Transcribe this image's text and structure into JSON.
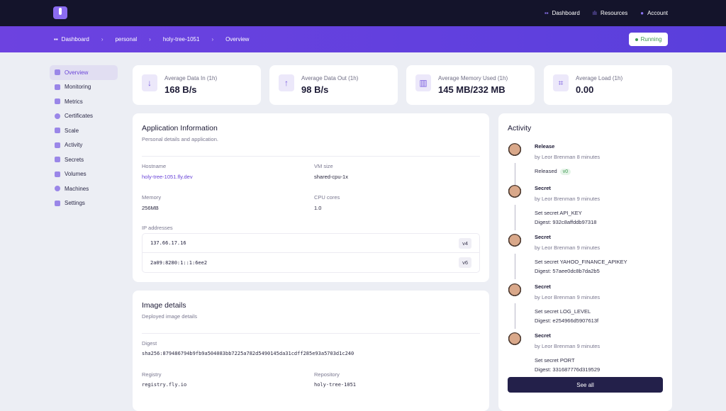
{
  "topnav": {
    "items": [
      {
        "label": "Dashboard",
        "icon": "grid-icon"
      },
      {
        "label": "Resources",
        "icon": "bar-chart-icon"
      },
      {
        "label": "Account",
        "icon": "user-icon"
      }
    ]
  },
  "breadcrumb": [
    "Dashboard",
    "personal",
    "holy-tree-1051",
    "Overview"
  ],
  "status": "Running",
  "sidebar": {
    "items": [
      "Overview",
      "Monitoring",
      "Metrics",
      "Certificates",
      "Scale",
      "Activity",
      "Secrets",
      "Volumes",
      "Machines",
      "Settings"
    ]
  },
  "stats": [
    {
      "label": "Average Data In (1h)",
      "value": "168 B/s",
      "icon": "↓"
    },
    {
      "label": "Average Data Out (1h)",
      "value": "98 B/s",
      "icon": "↑"
    },
    {
      "label": "Average Memory Used (1h)",
      "value": "145 MB/232 MB",
      "icon": "▥"
    },
    {
      "label": "Average Load (1h)",
      "value": "0.00",
      "icon": "⌗"
    }
  ],
  "app_info": {
    "title": "Application Information",
    "subtitle": "Personal details and application.",
    "hostname_label": "Hostname",
    "hostname": "holy-tree-1051.fly.dev",
    "vm_label": "VM size",
    "vm": "shared-cpu-1x",
    "memory_label": "Memory",
    "memory": "256MB",
    "cpu_label": "CPU cores",
    "cpu": "1.0",
    "ip_label": "IP addresses",
    "ips": [
      {
        "address": "137.66.17.16",
        "version": "v4"
      },
      {
        "address": "2a09:8280:1::1:6ee2",
        "version": "v6"
      }
    ]
  },
  "image": {
    "title": "Image details",
    "subtitle": "Deployed image details",
    "digest_label": "Digest",
    "digest": "sha256:879486794b9fb9a504083bb7225a782d5490145da31cdff285e93a5703d1c240",
    "registry_label": "Registry",
    "registry": "registry.fly.io",
    "repository_label": "Repository",
    "repository": "holy-tree-1051"
  },
  "activity": {
    "title": "Activity",
    "see_all": "See all",
    "items": [
      {
        "type": "Release",
        "by": "by Leor Brenman 8 minutes",
        "line1": "Released",
        "badge": "v0"
      },
      {
        "type": "Secret",
        "by": "by Leor Brenman 9 minutes",
        "line1": "Set secret API_KEY",
        "line2": "Digest: 932c8affddb97318"
      },
      {
        "type": "Secret",
        "by": "by Leor Brenman 9 minutes",
        "line1": "Set secret YAHOO_FINANCE_APIKEY",
        "line2": "Digest: 57aee0dc8b7da2b5"
      },
      {
        "type": "Secret",
        "by": "by Leor Brenman 9 minutes",
        "line1": "Set secret LOG_LEVEL",
        "line2": "Digest: e254966d5907613f"
      },
      {
        "type": "Secret",
        "by": "by Leor Brenman 9 minutes",
        "line1": "Set secret PORT",
        "line2": "Digest: 331687776d319529"
      }
    ]
  }
}
